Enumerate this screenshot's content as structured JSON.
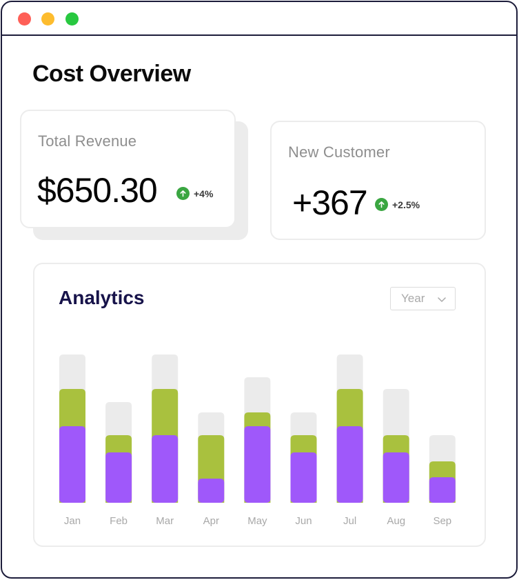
{
  "window": {
    "controls": [
      "close",
      "minimize",
      "maximize"
    ]
  },
  "page_title": "Cost Overview",
  "cards": {
    "revenue": {
      "label": "Total Revenue",
      "value": "$650.30",
      "change": "+4%",
      "trend_icon": "arrow-up-icon"
    },
    "customer": {
      "label": "New Customer",
      "value": "+367",
      "change": "+2.5%",
      "trend_icon": "arrow-up-icon"
    }
  },
  "analytics": {
    "title": "Analytics",
    "period_select": {
      "value": "Year",
      "icon": "chevron-down-icon"
    }
  },
  "colors": {
    "total": "#ebebeb",
    "green": "#a9c13e",
    "purple": "#9f58fa",
    "up_badge": "#3aa641"
  },
  "chart_data": {
    "type": "bar",
    "stacked": true,
    "categories": [
      "Jan",
      "Feb",
      "Mar",
      "Apr",
      "May",
      "Jun",
      "Jul",
      "Aug",
      "Sep"
    ],
    "series": [
      {
        "color": "#9f58fa",
        "values": [
          111,
          73,
          98,
          35,
          111,
          73,
          111,
          73,
          37
        ]
      },
      {
        "color": "#a9c13e",
        "values": [
          54,
          25,
          67,
          63,
          20,
          25,
          54,
          25,
          23
        ]
      },
      {
        "color": "#ebebeb",
        "values": [
          50,
          48,
          50,
          33,
          51,
          33,
          50,
          67,
          38
        ]
      }
    ],
    "ylim": [
      0,
      215
    ],
    "grid": false,
    "legend": "none"
  }
}
